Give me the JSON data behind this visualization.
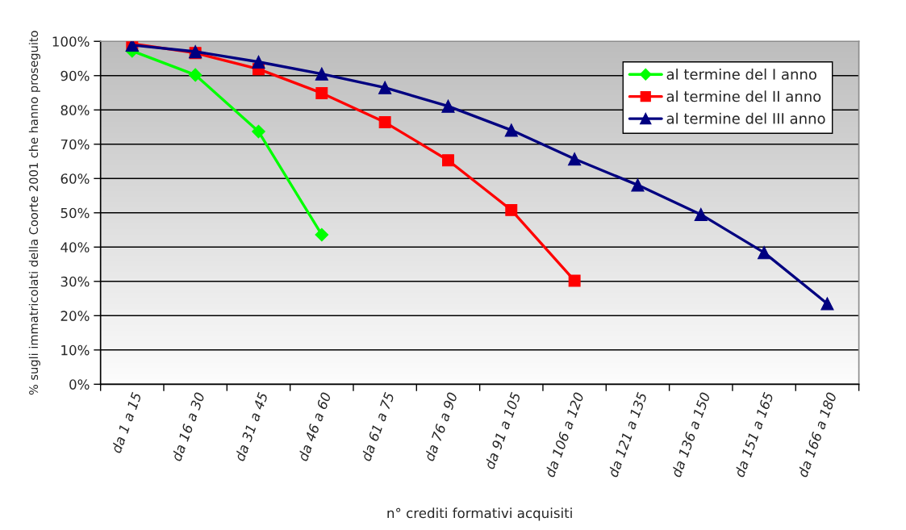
{
  "chart_data": {
    "type": "line",
    "ylabel": "% sugli immatricolati della Coorte 2001 che hanno proseguito",
    "xlabel": "n° crediti formativi acquisiti",
    "categories": [
      "da 1 a 15",
      "da 16 a 30",
      "da 31 a 45",
      "da 46 a 60",
      "da 61 a 75",
      "da 76 a 90",
      "da 91 a 105",
      "da 106 a 120",
      "da 121 a 135",
      "da 136 a 150",
      "da 151 a 165",
      "da 166 a 180"
    ],
    "series": [
      {
        "name": "al termine del I anno",
        "color": "#00ff00",
        "marker": "diamond",
        "values": [
          97.2,
          90.2,
          73.7,
          43.6,
          null,
          null,
          null,
          null,
          null,
          null,
          null,
          null
        ]
      },
      {
        "name": "al termine del II anno",
        "color": "#ff0000",
        "marker": "square",
        "values": [
          99.3,
          96.6,
          91.9,
          84.9,
          76.4,
          65.3,
          50.8,
          30.2,
          null,
          null,
          null,
          null
        ]
      },
      {
        "name": "al termine del III anno",
        "color": "#000080",
        "marker": "triangle",
        "values": [
          98.9,
          97.0,
          94.0,
          90.5,
          86.5,
          81.1,
          74.1,
          65.7,
          58.1,
          49.5,
          38.4,
          23.5
        ]
      }
    ],
    "ylim": [
      0,
      100
    ],
    "yticks": [
      {
        "value": 0,
        "label": "0%"
      },
      {
        "value": 10,
        "label": "10%"
      },
      {
        "value": 20,
        "label": "20%"
      },
      {
        "value": 30,
        "label": "30%"
      },
      {
        "value": 40,
        "label": "40%"
      },
      {
        "value": 50,
        "label": "50%"
      },
      {
        "value": 60,
        "label": "60%"
      },
      {
        "value": 70,
        "label": "70%"
      },
      {
        "value": 80,
        "label": "80%"
      },
      {
        "value": 90,
        "label": "90%"
      },
      {
        "value": 100,
        "label": "100%"
      }
    ],
    "grid": "y",
    "legend": "top right",
    "line_style": "solid"
  }
}
